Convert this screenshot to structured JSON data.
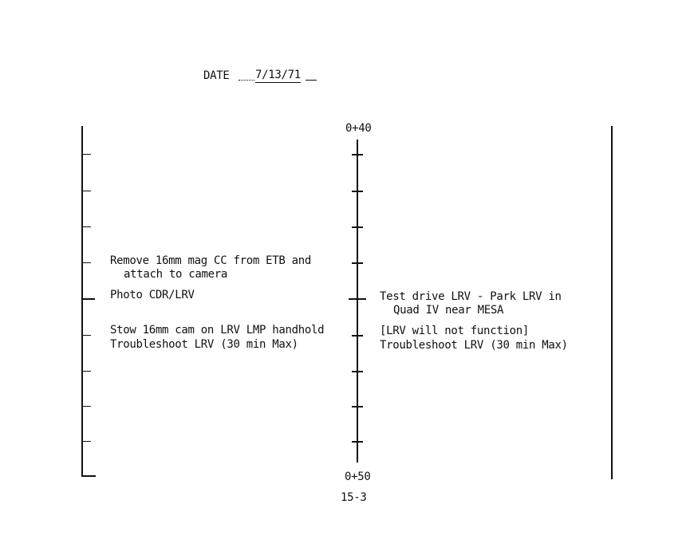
{
  "header": {
    "date_label": "DATE",
    "date_value": "7/13/71"
  },
  "timeline": {
    "start_label": "0+40",
    "end_label": "0+50"
  },
  "left_column": [
    {
      "text": "Remove 16mm mag CC from ETB and"
    },
    {
      "text": "attach to camera"
    },
    {
      "text": "Photo CDR/LRV"
    },
    {
      "text": "Stow 16mm cam on LRV LMP handhold"
    },
    {
      "text": "Troubleshoot LRV (30 min Max)"
    }
  ],
  "right_column": [
    {
      "text": "Test drive LRV - Park LRV in"
    },
    {
      "text": "Quad IV near MESA"
    },
    {
      "text": "[LRV will not function]"
    },
    {
      "text": "Troubleshoot LRV (30 min Max)"
    }
  ],
  "footer": {
    "page_number": "15-3"
  }
}
